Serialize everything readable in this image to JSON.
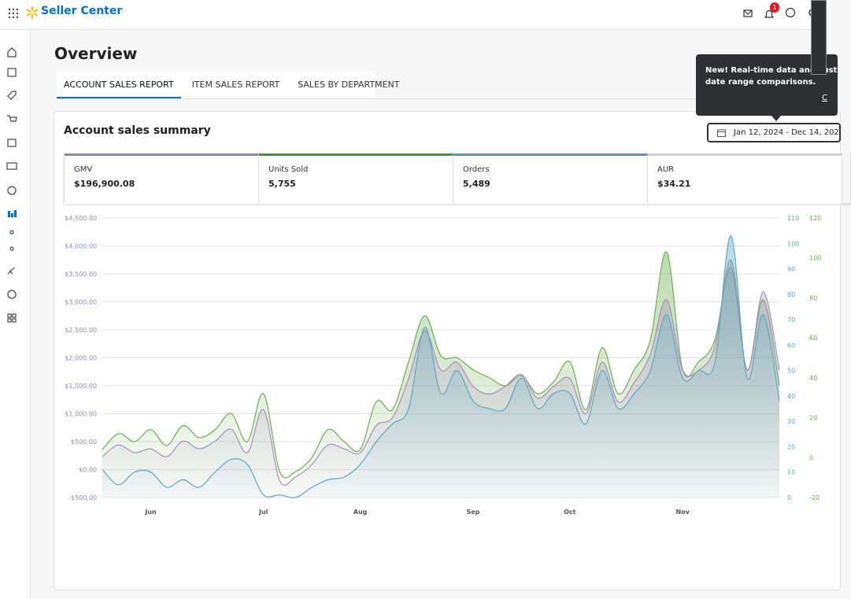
{
  "header": {
    "brand": "Seller Center",
    "notification_count": "1"
  },
  "page": {
    "title": "Overview",
    "tabs": [
      "ACCOUNT SALES REPORT",
      "ITEM SALES REPORT",
      "SALES BY DEPARTMENT"
    ]
  },
  "tooltip": {
    "line1": "New! Real-time data and cust",
    "line2": "date range comparisons.",
    "link": "C"
  },
  "summary": {
    "title": "Account sales summary",
    "date_range": "Jan 12, 2024 - Dec 14, 202",
    "metrics": [
      {
        "label": "GMV",
        "value": "$196,900.08",
        "color": "#9b7fb5"
      },
      {
        "label": "Units Sold",
        "value": "5,755",
        "color": "#3a9a2a"
      },
      {
        "label": "Orders",
        "value": "5,489",
        "color": "#4a9ac4"
      },
      {
        "label": "AUR",
        "value": "$34.21",
        "color": "#d0d0d0"
      }
    ]
  },
  "chart_data": {
    "type": "area",
    "categories": [
      null,
      null,
      null,
      "Jun",
      null,
      null,
      null,
      null,
      null,
      null,
      "Jul",
      null,
      null,
      null,
      null,
      null,
      "Aug",
      null,
      null,
      null,
      null,
      null,
      null,
      "Sep",
      null,
      null,
      null,
      null,
      null,
      "Oct",
      null,
      null,
      null,
      null,
      null,
      null,
      "Nov",
      null,
      null,
      null,
      null,
      null,
      null
    ],
    "ylim": [
      -500,
      4500
    ],
    "yticks": [
      {
        "value": -500,
        "label": "-$500.00"
      },
      {
        "value": 0,
        "label": "$0.00"
      },
      {
        "value": 500,
        "label": "$500.00"
      },
      {
        "value": 1000,
        "label": "$1,000.00"
      },
      {
        "value": 1500,
        "label": "$1,500.00"
      },
      {
        "value": 2000,
        "label": "$2,000.00"
      },
      {
        "value": 2500,
        "label": "$2,500.00"
      },
      {
        "value": 3000,
        "label": "$3,000.00"
      },
      {
        "value": 3500,
        "label": "$3,500.00"
      },
      {
        "value": 4000,
        "label": "$4,000.00"
      },
      {
        "value": 4500,
        "label": "$4,500.00"
      }
    ],
    "y2lim": [
      0,
      110
    ],
    "y2ticks": [
      0,
      10,
      20,
      30,
      40,
      50,
      60,
      70,
      80,
      90,
      100,
      110
    ],
    "y3lim": [
      -20,
      120
    ],
    "y3ticks": [
      -20,
      0,
      20,
      40,
      60,
      80,
      100,
      120
    ],
    "grid": true,
    "series": [
      {
        "name": "Units Sold",
        "color": "#6ab04c",
        "axis": "y3",
        "values": [
          4,
          12,
          8,
          14,
          6,
          16,
          10,
          14,
          22,
          8,
          32,
          -7,
          -7,
          0,
          14,
          8,
          4,
          28,
          24,
          48,
          71,
          51,
          50,
          44,
          40,
          36,
          41,
          32,
          38,
          48,
          24,
          55,
          32,
          44,
          59,
          103,
          44,
          48,
          59,
          95,
          44,
          79,
          36
        ]
      },
      {
        "name": "GMV",
        "color": "#a98cc0",
        "axis": "y",
        "values": [
          230,
          440,
          300,
          370,
          230,
          510,
          370,
          510,
          720,
          300,
          1070,
          -200,
          -130,
          90,
          440,
          370,
          300,
          790,
          930,
          1630,
          2480,
          1780,
          1920,
          1490,
          1350,
          1490,
          1700,
          1280,
          1490,
          1630,
          1000,
          1920,
          1210,
          1560,
          2060,
          3040,
          1780,
          1780,
          2200,
          3750,
          1780,
          3180,
          1780
        ]
      },
      {
        "name": "Orders",
        "color": "#5aa7c8",
        "axis": "y2",
        "values": [
          11,
          5,
          10,
          10,
          4,
          7,
          4,
          10,
          15,
          13,
          1,
          1,
          0,
          4,
          7,
          8,
          13,
          22,
          29,
          35,
          67,
          41,
          50,
          38,
          35,
          35,
          47,
          35,
          41,
          41,
          29,
          50,
          35,
          41,
          50,
          72,
          47,
          50,
          53,
          103,
          47,
          72,
          38
        ]
      }
    ]
  }
}
